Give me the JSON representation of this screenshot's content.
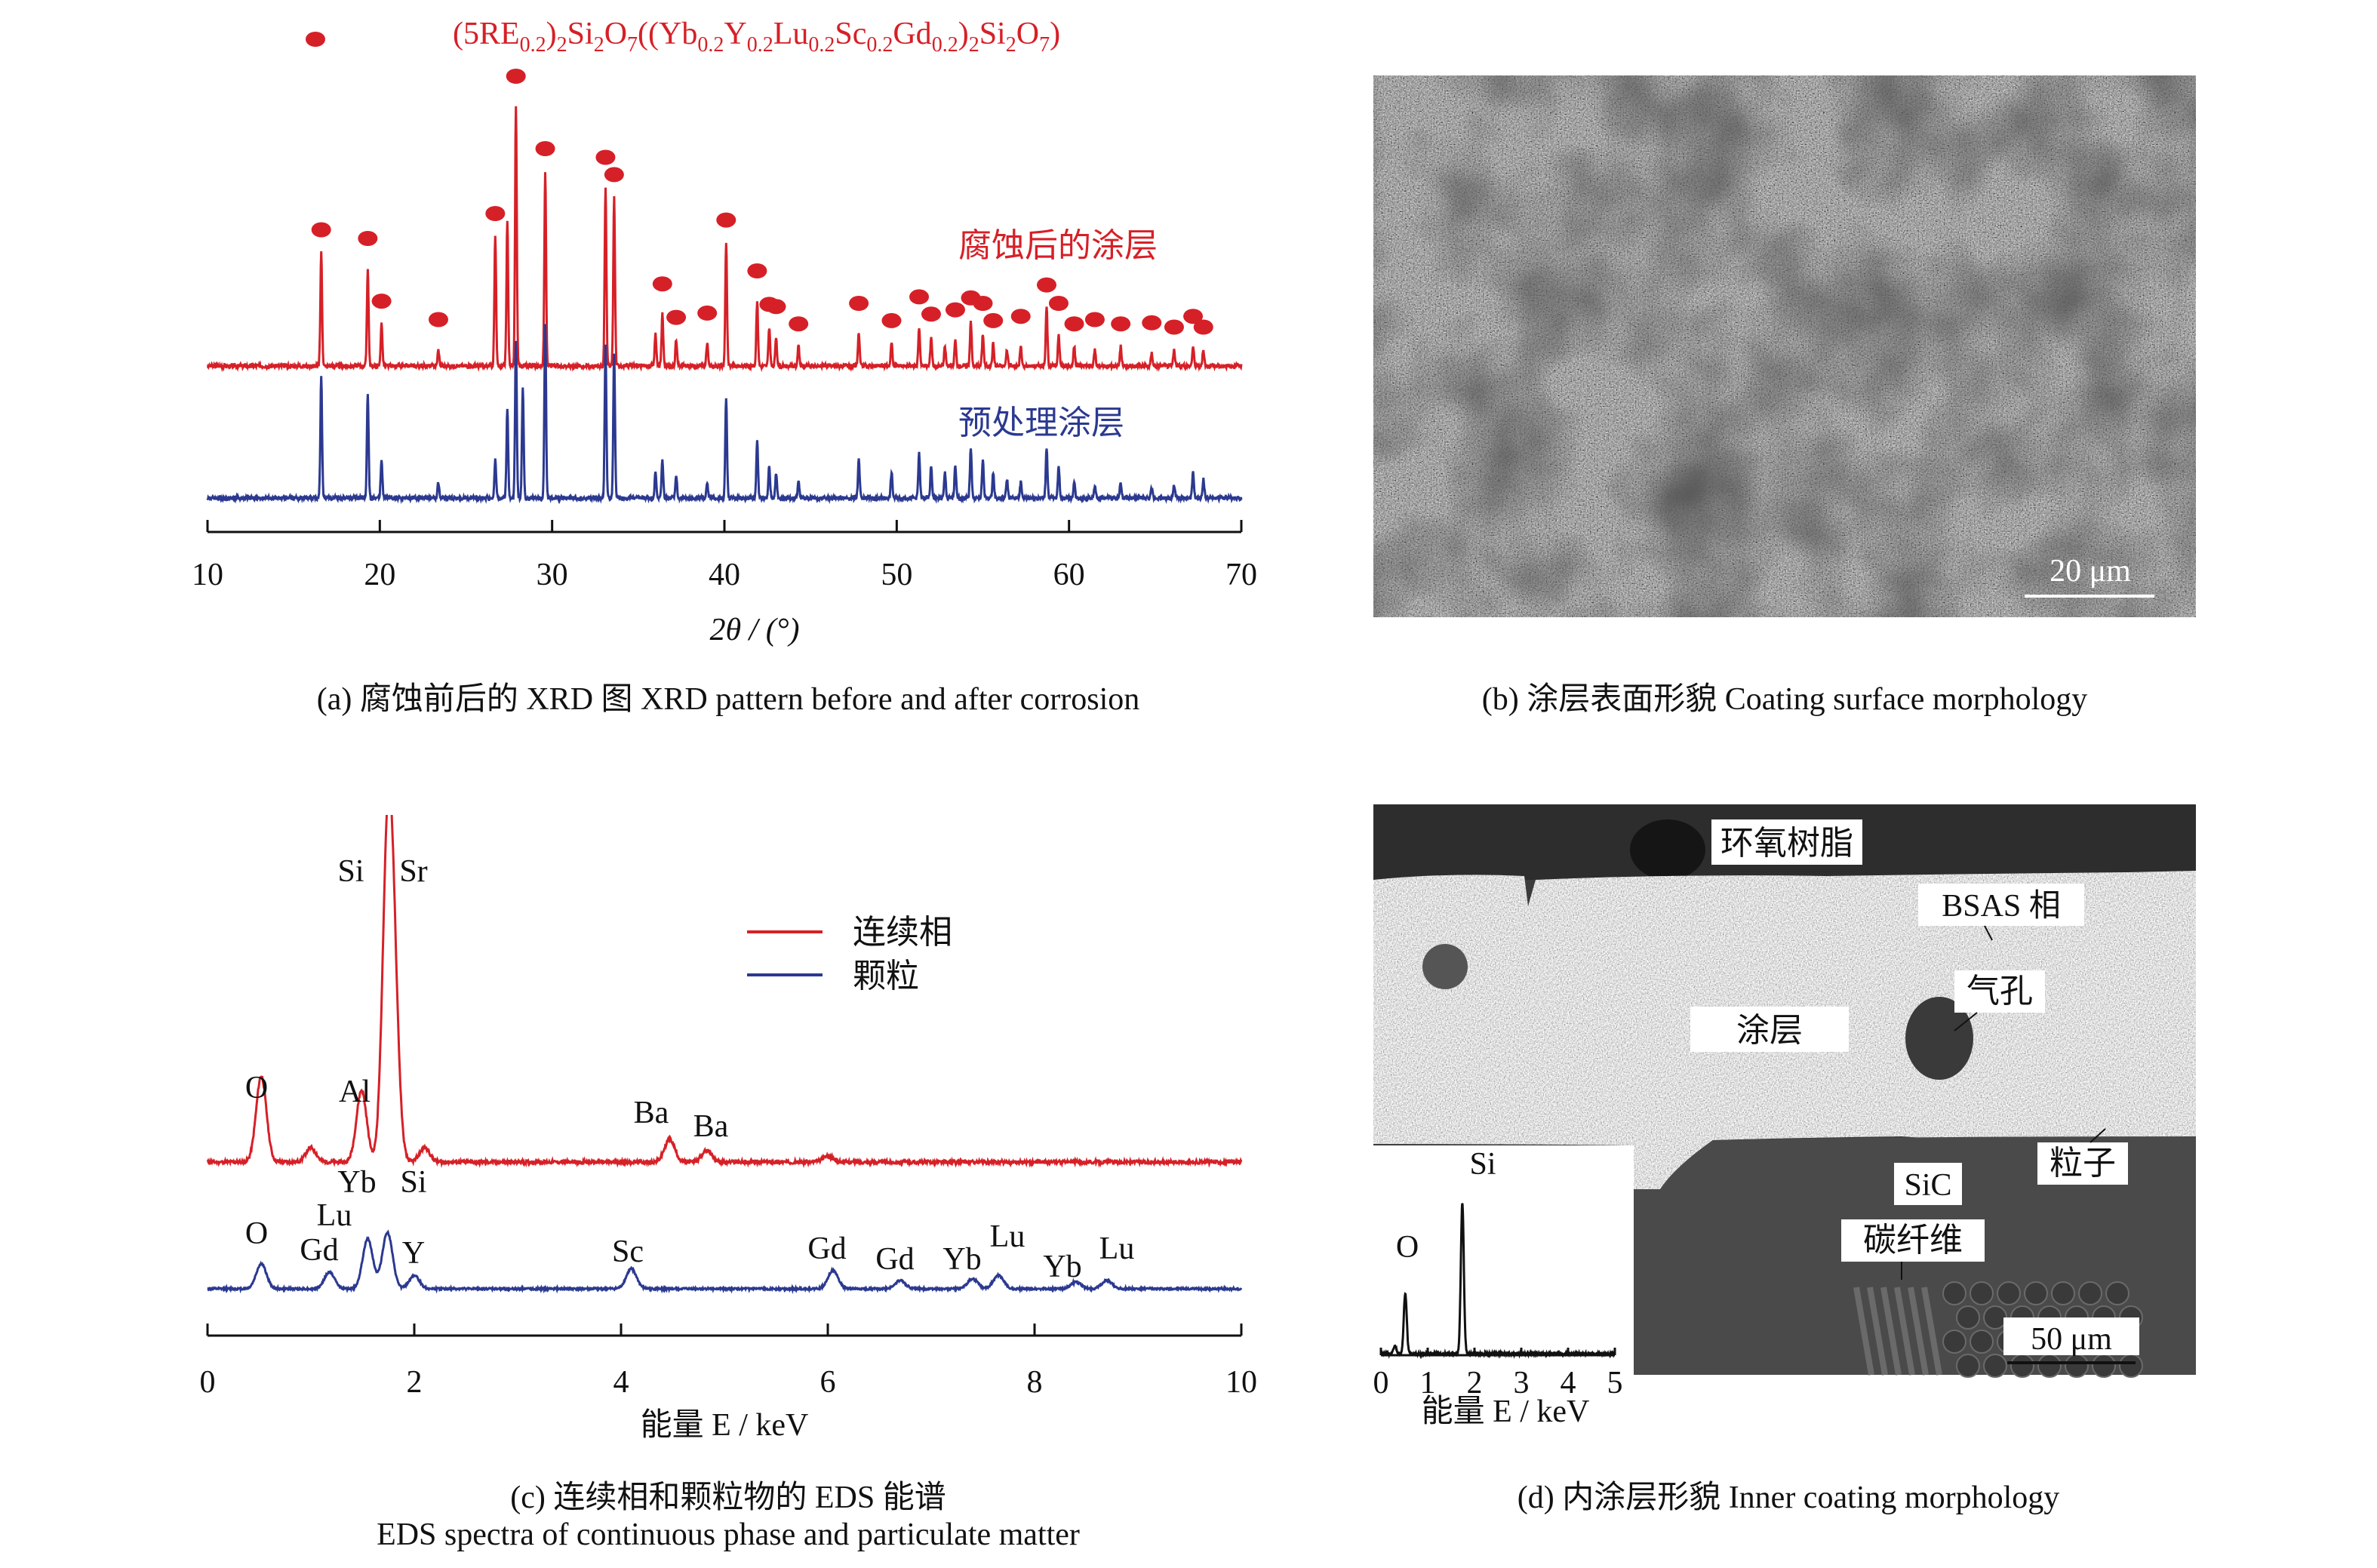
{
  "panel_a": {
    "legend_marker_label_parts": [
      "(5RE",
      "0.2",
      ")",
      "2",
      "Si",
      "2",
      "O",
      "7",
      "((Yb",
      "0.2",
      "Y",
      "0.2",
      "Lu",
      "0.2",
      "Sc",
      "0.2",
      "Gd",
      "0.2",
      ")",
      "2",
      "Si",
      "2",
      "O",
      "7",
      ")"
    ],
    "xlabel": "2θ / (°)",
    "caption": "(a) 腐蚀前后的 XRD 图 XRD pattern before and after corrosion"
  },
  "panel_b": {
    "scale_label": "20 μm",
    "caption": "(b) 涂层表面形貌 Coating surface morphology"
  },
  "panel_c": {
    "xlabel": "能量 E / keV",
    "caption_line1": "(c) 连续相和颗粒物的 EDS 能谱",
    "caption_line2": "EDS spectra of continuous phase and particulate matter"
  },
  "panel_d": {
    "labels": {
      "epoxy": "环氧树脂",
      "bsas": "BSAS 相",
      "pore": "气孔",
      "coating": "涂层",
      "sic": "SiC",
      "particle": "粒子",
      "carbon_fiber": "碳纤维"
    },
    "inset_peaks": [
      "O",
      "Si"
    ],
    "inset_xlabel": "能量 E / keV",
    "scale_label": "50 μm",
    "caption": "(d) 内涂层形貌 Inner coating morphology"
  },
  "colors": {
    "red": "#d62027",
    "blue": "#2b3990",
    "dark": "#111111"
  },
  "chart_data": [
    {
      "type": "line",
      "title": "",
      "xlabel": "2θ / (°)",
      "ylabel": "",
      "xlim": [
        10,
        70
      ],
      "xticks": [
        10,
        20,
        30,
        40,
        50,
        60,
        70
      ],
      "series": [
        {
          "name": "腐蚀后的涂层",
          "color": "#d62027",
          "peaks": [
            [
              16.6,
              0.35
            ],
            [
              19.3,
              0.3
            ],
            [
              20.1,
              0.13
            ],
            [
              23.4,
              0.05
            ],
            [
              26.7,
              0.4
            ],
            [
              27.4,
              0.45
            ],
            [
              27.9,
              0.8
            ],
            [
              29.6,
              0.6
            ],
            [
              33.1,
              0.55
            ],
            [
              33.6,
              0.52
            ],
            [
              36.0,
              0.1
            ],
            [
              36.4,
              0.16
            ],
            [
              37.2,
              0.08
            ],
            [
              39.0,
              0.07
            ],
            [
              40.1,
              0.38
            ],
            [
              41.9,
              0.2
            ],
            [
              42.6,
              0.12
            ],
            [
              43.0,
              0.09
            ],
            [
              44.3,
              0.06
            ],
            [
              47.8,
              0.1
            ],
            [
              49.7,
              0.07
            ],
            [
              51.3,
              0.12
            ],
            [
              52.0,
              0.09
            ],
            [
              52.8,
              0.06
            ],
            [
              53.4,
              0.08
            ],
            [
              54.3,
              0.14
            ],
            [
              55.0,
              0.1
            ],
            [
              55.6,
              0.07
            ],
            [
              56.4,
              0.05
            ],
            [
              57.2,
              0.06
            ],
            [
              58.7,
              0.18
            ],
            [
              59.4,
              0.1
            ],
            [
              60.3,
              0.06
            ],
            [
              61.5,
              0.05
            ],
            [
              63.0,
              0.06
            ],
            [
              64.8,
              0.04
            ],
            [
              66.1,
              0.05
            ],
            [
              67.2,
              0.06
            ],
            [
              67.8,
              0.05
            ]
          ],
          "markers": [
            16.6,
            19.3,
            20.1,
            23.4,
            26.7,
            27.9,
            29.6,
            33.1,
            33.6,
            36.4,
            37.2,
            39.0,
            40.1,
            41.9,
            42.6,
            43.0,
            44.3,
            47.8,
            49.7,
            51.3,
            52.0,
            53.4,
            54.3,
            55.0,
            55.6,
            57.2,
            58.7,
            59.4,
            60.3,
            61.5,
            63.0,
            64.8,
            66.1,
            67.2,
            67.8
          ],
          "label": "腐蚀后的涂层"
        },
        {
          "name": "预处理涂层",
          "color": "#2b3990",
          "peaks": [
            [
              16.6,
              0.38
            ],
            [
              19.3,
              0.33
            ],
            [
              20.1,
              0.12
            ],
            [
              23.4,
              0.05
            ],
            [
              26.7,
              0.12
            ],
            [
              27.4,
              0.28
            ],
            [
              27.9,
              0.5
            ],
            [
              28.3,
              0.35
            ],
            [
              29.6,
              0.55
            ],
            [
              33.1,
              0.48
            ],
            [
              33.6,
              0.46
            ],
            [
              36.0,
              0.08
            ],
            [
              36.4,
              0.12
            ],
            [
              37.2,
              0.07
            ],
            [
              39.0,
              0.05
            ],
            [
              40.1,
              0.32
            ],
            [
              41.9,
              0.18
            ],
            [
              42.6,
              0.1
            ],
            [
              43.0,
              0.08
            ],
            [
              44.3,
              0.05
            ],
            [
              47.8,
              0.12
            ],
            [
              49.7,
              0.08
            ],
            [
              51.3,
              0.14
            ],
            [
              52.0,
              0.1
            ],
            [
              52.8,
              0.08
            ],
            [
              53.4,
              0.1
            ],
            [
              54.3,
              0.16
            ],
            [
              55.0,
              0.12
            ],
            [
              55.6,
              0.08
            ],
            [
              56.4,
              0.06
            ],
            [
              57.2,
              0.05
            ],
            [
              58.7,
              0.16
            ],
            [
              59.4,
              0.1
            ],
            [
              60.3,
              0.05
            ],
            [
              61.5,
              0.04
            ],
            [
              63.0,
              0.05
            ],
            [
              64.8,
              0.03
            ],
            [
              66.1,
              0.04
            ],
            [
              67.2,
              0.08
            ],
            [
              67.8,
              0.06
            ]
          ],
          "label": "预处理涂层"
        }
      ]
    },
    {
      "type": "line",
      "title": "",
      "xlabel": "能量 E / keV",
      "ylabel": "",
      "xlim": [
        0,
        10
      ],
      "xticks": [
        0,
        2,
        4,
        6,
        8,
        10
      ],
      "legend": {
        "position": "top-right"
      },
      "series": [
        {
          "name": "连续相",
          "color": "#d62027",
          "peaks": [
            [
              0.52,
              0.3
            ],
            [
              1.0,
              0.05
            ],
            [
              1.49,
              0.25
            ],
            [
              1.74,
              1.0
            ],
            [
              1.8,
              0.55
            ],
            [
              2.1,
              0.05
            ],
            [
              4.47,
              0.08
            ],
            [
              4.83,
              0.04
            ],
            [
              6.0,
              0.02
            ]
          ],
          "annotations": [
            {
              "text": "O",
              "x": 0.52
            },
            {
              "text": "Al",
              "x": 1.4
            },
            {
              "text": "Si",
              "x": 1.4
            },
            {
              "text": "Sr",
              "x": 1.9
            },
            {
              "text": "Ba",
              "x": 4.5
            },
            {
              "text": "Ba",
              "x": 4.9
            }
          ]
        },
        {
          "name": "颗粒",
          "color": "#2b3990",
          "peaks": [
            [
              0.52,
              0.15
            ],
            [
              1.18,
              0.1
            ],
            [
              1.55,
              0.3
            ],
            [
              1.74,
              0.34
            ],
            [
              2.0,
              0.08
            ],
            [
              4.1,
              0.12
            ],
            [
              6.05,
              0.11
            ],
            [
              6.7,
              0.05
            ],
            [
              7.4,
              0.06
            ],
            [
              7.65,
              0.08
            ],
            [
              8.4,
              0.04
            ],
            [
              8.7,
              0.05
            ]
          ],
          "annotations": [
            {
              "text": "O",
              "x": 0.52
            },
            {
              "text": "Gd",
              "x": 1.1
            },
            {
              "text": "Lu",
              "x": 1.2
            },
            {
              "text": "Yb",
              "x": 1.45
            },
            {
              "text": "Si",
              "x": 1.8
            },
            {
              "text": "Y",
              "x": 2.0
            },
            {
              "text": "Sc",
              "x": 4.1
            },
            {
              "text": "Gd",
              "x": 6.05
            },
            {
              "text": "Gd",
              "x": 6.6
            },
            {
              "text": "Yb",
              "x": 7.3
            },
            {
              "text": "Lu",
              "x": 7.65
            },
            {
              "text": "Yb",
              "x": 8.3
            },
            {
              "text": "Lu",
              "x": 8.75
            }
          ]
        }
      ]
    },
    {
      "type": "line",
      "title": "",
      "xlabel": "能量 E / keV",
      "ylabel": "",
      "xlim": [
        0,
        5
      ],
      "xticks": [
        0,
        1,
        2,
        3,
        4,
        5
      ],
      "series": [
        {
          "name": "",
          "color": "#111111",
          "peaks": [
            [
              0.52,
              0.4
            ],
            [
              1.74,
              1.0
            ],
            [
              0.3,
              0.05
            ]
          ]
        }
      ]
    }
  ]
}
